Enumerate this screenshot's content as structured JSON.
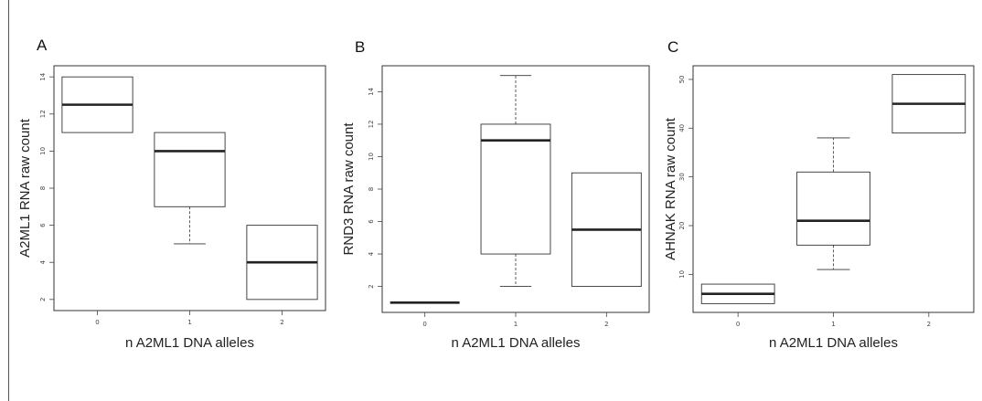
{
  "chart_data": [
    {
      "type": "box",
      "panel_label": "A",
      "ylabel": "A2ML1  RNA raw count",
      "xlabel": "n A2ML1 DNA alleles",
      "categories": [
        "0",
        "1",
        "2"
      ],
      "yticks": [
        2,
        4,
        6,
        8,
        10,
        12,
        14
      ],
      "ylim": [
        1.4,
        14.6
      ],
      "boxes": [
        {
          "category": "0",
          "min": 11,
          "q1": 11,
          "median": 12.5,
          "q3": 14,
          "max": 14
        },
        {
          "category": "1",
          "min": 5,
          "q1": 7,
          "median": 10,
          "q3": 11,
          "max": 11
        },
        {
          "category": "2",
          "min": 2,
          "q1": 2,
          "median": 4,
          "q3": 6,
          "max": 6
        }
      ]
    },
    {
      "type": "box",
      "panel_label": "B",
      "ylabel": "RND3  RNA raw count",
      "xlabel": "n A2ML1 DNA alleles",
      "categories": [
        "0",
        "1",
        "2"
      ],
      "yticks": [
        2,
        4,
        6,
        8,
        10,
        12,
        14
      ],
      "ylim": [
        0.4,
        15.6
      ],
      "boxes": [
        {
          "category": "0",
          "min": 1,
          "q1": 1,
          "median": 1,
          "q3": 1,
          "max": 1
        },
        {
          "category": "1",
          "min": 2,
          "q1": 4,
          "median": 11,
          "q3": 12,
          "max": 15
        },
        {
          "category": "2",
          "min": 2,
          "q1": 2,
          "median": 5.5,
          "q3": 9,
          "max": 9
        }
      ]
    },
    {
      "type": "box",
      "panel_label": "C",
      "ylabel": "AHNAK  RNA raw count",
      "xlabel": "n A2ML1 DNA alleles",
      "categories": [
        "0",
        "1",
        "2"
      ],
      "yticks": [
        10,
        20,
        30,
        40,
        50
      ],
      "ylim": [
        2.2,
        52.8
      ],
      "boxes": [
        {
          "category": "0",
          "min": 4,
          "q1": 4,
          "median": 6,
          "q3": 8,
          "max": 8
        },
        {
          "category": "1",
          "min": 11,
          "q1": 16,
          "median": 21,
          "q3": 31,
          "max": 38
        },
        {
          "category": "2",
          "min": 39,
          "q1": 39,
          "median": 45,
          "q3": 51,
          "max": 51
        }
      ]
    }
  ]
}
